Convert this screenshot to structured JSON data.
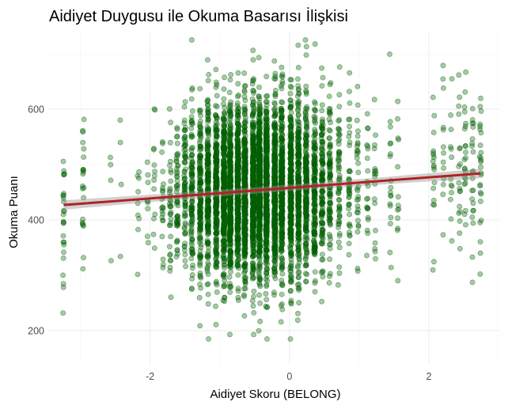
{
  "chart_data": {
    "type": "scatter",
    "title": "Aidiyet Duygusu ile Okuma Basarısı İlişkisi",
    "xlabel": "Aidiyet Skoru (BELONG)",
    "ylabel": "Okuma Puanı",
    "xlim": [
      -3.45,
      3.0
    ],
    "ylim": [
      140,
      740
    ],
    "x_ticks": [
      -2,
      0,
      2
    ],
    "x_tick_labels": [
      "-2",
      "0",
      "2"
    ],
    "y_ticks": [
      200,
      400,
      600
    ],
    "y_tick_labels": [
      "200",
      "400",
      "600"
    ],
    "grid": true,
    "legend": "none",
    "point_color": "#006400",
    "trend_color": "#b22222",
    "point_x_levels": [
      -3.24,
      -2.96,
      -2.57,
      -2.42,
      -2.17,
      -2.03,
      -1.94,
      -1.82,
      -1.71,
      -1.61,
      -1.5,
      -1.4,
      -1.28,
      -1.17,
      -1.05,
      -0.94,
      -0.85,
      -0.74,
      -0.64,
      -0.52,
      -0.43,
      -0.33,
      -0.21,
      -0.11,
      0.02,
      0.13,
      0.24,
      0.36,
      0.47,
      0.58,
      0.71,
      0.86,
      0.98,
      1.12,
      1.23,
      1.45,
      1.56,
      2.07,
      2.21,
      2.32,
      2.44,
      2.52,
      2.63,
      2.74
    ],
    "point_density": [
      6,
      5,
      1,
      1,
      2,
      2,
      3,
      5,
      8,
      12,
      18,
      25,
      36,
      50,
      62,
      72,
      80,
      88,
      92,
      95,
      95,
      90,
      85,
      78,
      70,
      60,
      50,
      40,
      30,
      22,
      14,
      9,
      7,
      5,
      4,
      4,
      3,
      4,
      3,
      3,
      4,
      5,
      5,
      6
    ],
    "point_y_center": 455,
    "point_y_spread": 78,
    "point_y_range": [
      185,
      725
    ],
    "n_points": 6000,
    "trend_line": {
      "x": [
        -3.24,
        2.74
      ],
      "y": [
        427,
        484
      ]
    }
  }
}
